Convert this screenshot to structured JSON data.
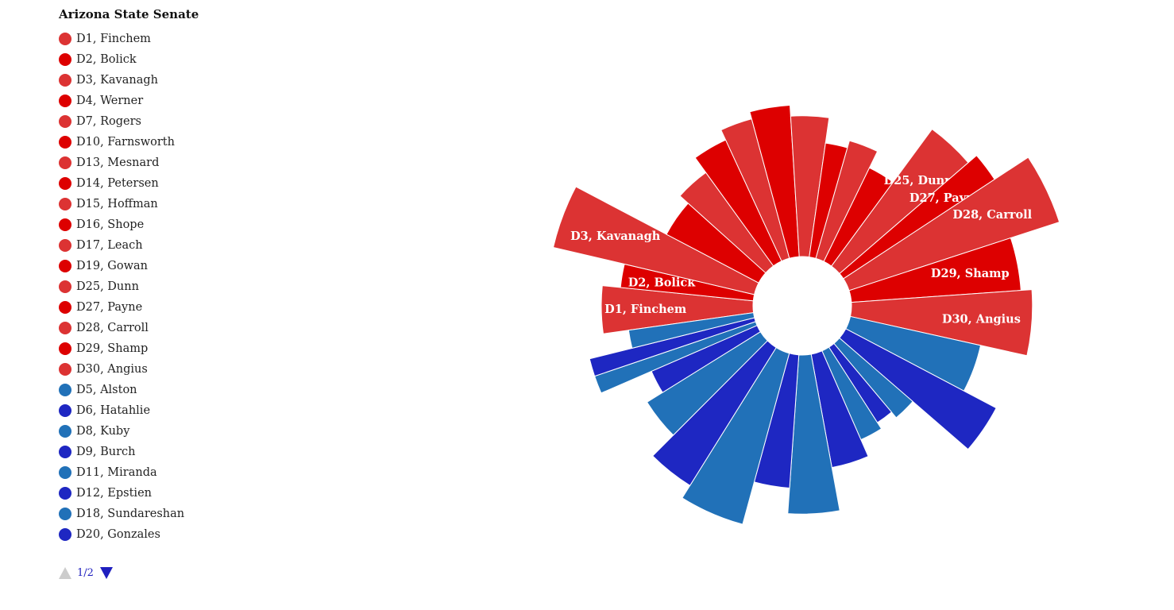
{
  "legend": {
    "title": "Arizona State Senate",
    "pager": {
      "text": "1/2"
    }
  },
  "colors": {
    "rep_light": "#dc3333",
    "rep_dark": "#dd0000",
    "dem_light": "#2171b8",
    "dem_dark": "#1e27c2"
  },
  "chart_data": {
    "type": "pie",
    "subtype": "variable-radius donut",
    "center_hole": true,
    "labels_shown_on_slices": [
      "D3, Kavanagh",
      "D2, Bolick",
      "D1, Finchem",
      "D25, Dunn",
      "D27, Payne",
      "D28, Carroll",
      "D29, Shamp",
      "D30, Angius"
    ],
    "slices": [
      {
        "label": "D1, Finchem",
        "party": "R",
        "color": "#dc3333",
        "share": 3.78,
        "magnitude": 0.55
      },
      {
        "label": "D2, Bolick",
        "party": "R",
        "color": "#dd0000",
        "share": 2.05,
        "magnitude": 0.5
      },
      {
        "label": "D3, Kavanagh",
        "party": "R",
        "color": "#dc3333",
        "share": 4.0,
        "magnitude": 0.7
      },
      {
        "label": "D4, Werner",
        "party": "R",
        "color": "#dd0000",
        "share": 3.9,
        "magnitude": 0.42
      },
      {
        "label": "D7, Rogers",
        "party": "R",
        "color": "#dc3333",
        "share": 3.35,
        "magnitude": 0.45
      },
      {
        "label": "D10, Farnsworth",
        "party": "R",
        "color": "#dd0000",
        "share": 3.05,
        "magnitude": 0.5
      },
      {
        "label": "D13, Mesnard",
        "party": "R",
        "color": "#dc3333",
        "share": 2.65,
        "magnitude": 0.53
      },
      {
        "label": "D14, Petersen",
        "party": "R",
        "color": "#dd0000",
        "share": 3.2,
        "magnitude": 0.55
      },
      {
        "label": "D15, Hoffman",
        "party": "R",
        "color": "#dc3333",
        "share": 3.2,
        "magnitude": 0.52
      },
      {
        "label": "D16, Shope",
        "party": "R",
        "color": "#dd0000",
        "share": 2.15,
        "magnitude": 0.45
      },
      {
        "label": "D17, Leach",
        "party": "R",
        "color": "#dc3333",
        "share": 2.75,
        "magnitude": 0.47
      },
      {
        "label": "D19, Gowan",
        "party": "R",
        "color": "#dd0000",
        "share": 2.85,
        "magnitude": 0.42
      },
      {
        "label": "D25, Dunn",
        "party": "R",
        "color": "#dc3333",
        "share": 3.55,
        "magnitude": 0.6
      },
      {
        "label": "D27, Payne",
        "party": "R",
        "color": "#dd0000",
        "share": 2.05,
        "magnitude": 0.63
      },
      {
        "label": "D28, Carroll",
        "party": "R",
        "color": "#dc3333",
        "share": 4.2,
        "magnitude": 0.74
      },
      {
        "label": "D29, Shamp",
        "party": "R",
        "color": "#dd0000",
        "share": 3.85,
        "magnitude": 0.6
      },
      {
        "label": "D30, Angius",
        "party": "R",
        "color": "#dc3333",
        "share": 4.55,
        "magnitude": 0.63
      },
      {
        "label": "D5, Alston",
        "party": "D",
        "color": "#2171b8",
        "share": 4.2,
        "magnitude": 0.5
      },
      {
        "label": "D6, Hatahlie",
        "party": "D",
        "color": "#1e27c2",
        "share": 3.6,
        "magnitude": 0.6
      },
      {
        "label": "D8, Kuby",
        "party": "D",
        "color": "#2171b8",
        "share": 2.5,
        "magnitude": 0.4
      },
      {
        "label": "D9, Burch",
        "party": "D",
        "color": "#1e27c2",
        "share": 2.0,
        "magnitude": 0.38
      },
      {
        "label": "D11, Miranda",
        "party": "D",
        "color": "#2171b8",
        "share": 2.5,
        "magnitude": 0.4
      },
      {
        "label": "D12, Epstien",
        "party": "D",
        "color": "#1e27c2",
        "share": 3.65,
        "magnitude": 0.45
      },
      {
        "label": "D18, Sundareshan",
        "party": "D",
        "color": "#2171b8",
        "share": 3.95,
        "magnitude": 0.57
      },
      {
        "label": "D20, Gonzales",
        "party": "D",
        "color": "#1e27c2",
        "share": 3.1,
        "magnitude": 0.5
      },
      {
        "party": "D",
        "color": "#2171b8",
        "share": 4.6,
        "magnitude": 0.62
      },
      {
        "party": "D",
        "color": "#1e27c2",
        "share": 3.55,
        "magnitude": 0.58
      },
      {
        "party": "D",
        "color": "#2171b8",
        "share": 3.65,
        "magnitude": 0.5
      },
      {
        "party": "D",
        "color": "#1e27c2",
        "share": 2.3,
        "magnitude": 0.45
      },
      {
        "party": "D",
        "color": "#2171b8",
        "share": 1.3,
        "magnitude": 0.6
      },
      {
        "party": "D",
        "color": "#1e27c2",
        "share": 1.3,
        "magnitude": 0.6
      },
      {
        "party": "D",
        "color": "#2171b8",
        "share": 1.65,
        "magnitude": 0.48
      }
    ]
  }
}
